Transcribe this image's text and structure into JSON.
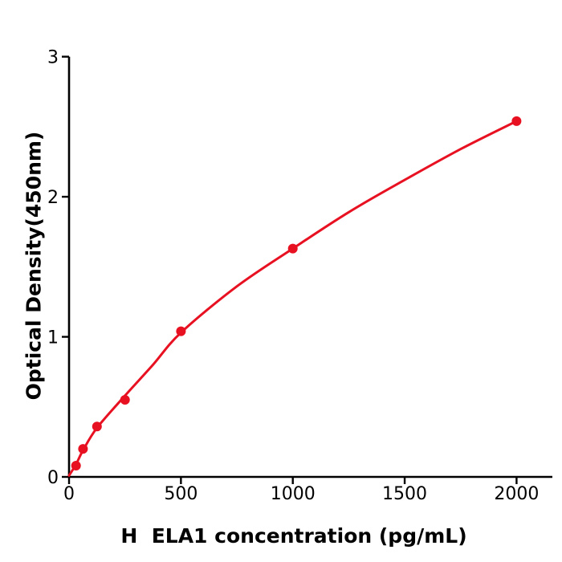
{
  "figure": {
    "background": "#ffffff",
    "kind": "ELISA standard curve"
  },
  "chart_data": {
    "type": "scatter",
    "title": "",
    "xlabel": "H  ELA1 concentration (pg/mL)",
    "ylabel": "Optical Density(450nm)",
    "points": {
      "x": [
        31.25,
        62.5,
        125,
        250,
        500,
        1000,
        2000
      ],
      "y": [
        0.08,
        0.2,
        0.36,
        0.55,
        1.04,
        1.63,
        2.54
      ]
    },
    "fit_curve": {
      "x": [
        0,
        31.25,
        62.5,
        125,
        250,
        375,
        500,
        750,
        1000,
        1250,
        1500,
        1750,
        2000
      ],
      "y": [
        0.01,
        0.09,
        0.19,
        0.35,
        0.58,
        0.8,
        1.03,
        1.36,
        1.63,
        1.89,
        2.12,
        2.34,
        2.54
      ]
    },
    "xlim": [
      0,
      2160
    ],
    "ylim": [
      0,
      3
    ],
    "xticks": {
      "values": [
        0,
        500,
        1000,
        1500,
        2000
      ],
      "labels": [
        "0",
        "500",
        "1000",
        "1500",
        "2000"
      ]
    },
    "yticks": {
      "values": [
        0,
        1,
        2,
        3
      ],
      "labels": [
        "0",
        "1",
        "2",
        "3"
      ]
    },
    "grid": false,
    "legend": false,
    "colors": {
      "marker": "#e81122",
      "line": "#e81122",
      "axis": "#000000",
      "text": "#000000"
    }
  }
}
